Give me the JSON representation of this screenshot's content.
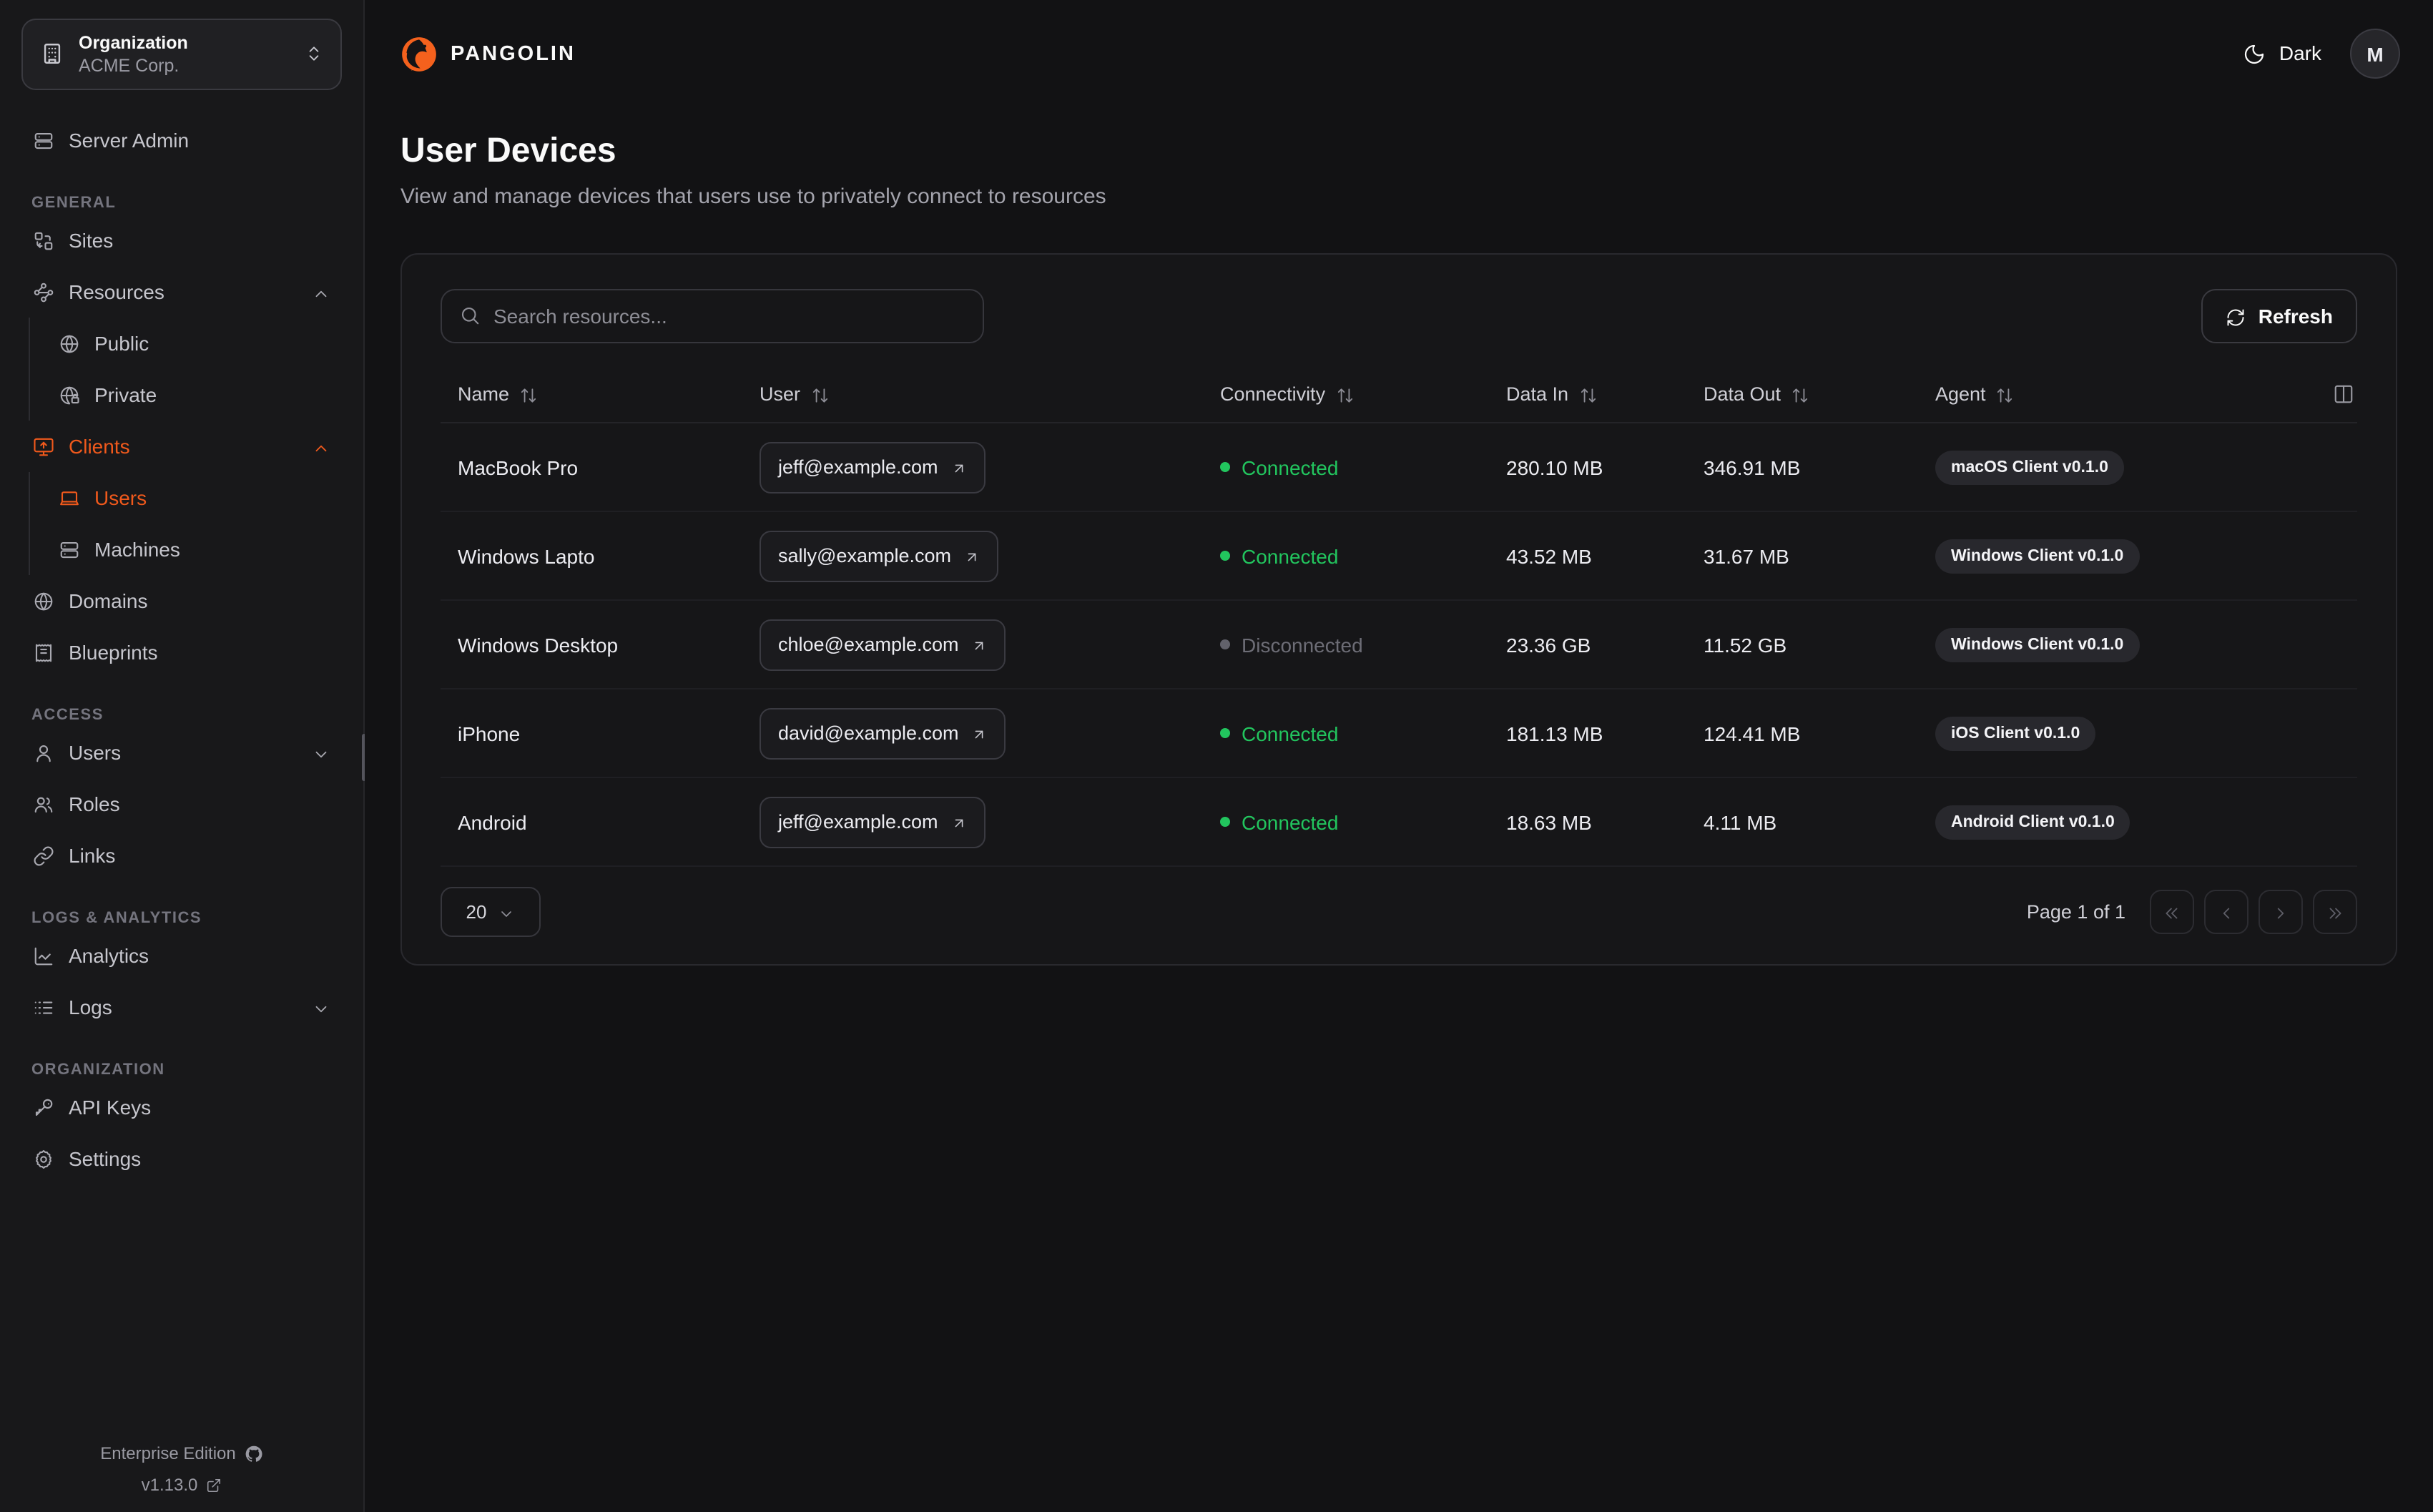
{
  "brand": {
    "name": "PANGOLIN"
  },
  "org_selector": {
    "label": "Organization",
    "value": "ACME Corp.",
    "icon": "building"
  },
  "topbar": {
    "theme_label": "Dark",
    "theme_icon": "moon",
    "avatar_initial": "M"
  },
  "sidebar": {
    "top_item": {
      "label": "Server Admin",
      "icon": "server"
    },
    "sections": [
      {
        "label": "GENERAL",
        "items": [
          {
            "label": "Sites",
            "icon": "sites"
          },
          {
            "label": "Resources",
            "icon": "waypoints",
            "chevron": "up",
            "children": [
              {
                "label": "Public",
                "icon": "globe"
              },
              {
                "label": "Private",
                "icon": "globe-lock"
              }
            ]
          },
          {
            "label": "Clients",
            "icon": "monitor-up",
            "chevron": "up",
            "active": true,
            "children": [
              {
                "label": "Users",
                "icon": "laptop",
                "active": true
              },
              {
                "label": "Machines",
                "icon": "server"
              }
            ]
          },
          {
            "label": "Domains",
            "icon": "globe"
          },
          {
            "label": "Blueprints",
            "icon": "receipt"
          }
        ]
      },
      {
        "label": "ACCESS",
        "items": [
          {
            "label": "Users",
            "icon": "user",
            "chevron": "down"
          },
          {
            "label": "Roles",
            "icon": "users"
          },
          {
            "label": "Links",
            "icon": "link"
          }
        ]
      },
      {
        "label": "LOGS & ANALYTICS",
        "items": [
          {
            "label": "Analytics",
            "icon": "chart-line"
          },
          {
            "label": "Logs",
            "icon": "logs",
            "chevron": "down"
          }
        ]
      },
      {
        "label": "ORGANIZATION",
        "items": [
          {
            "label": "API Keys",
            "icon": "key"
          },
          {
            "label": "Settings",
            "icon": "gear"
          }
        ]
      }
    ],
    "footer": {
      "edition": "Enterprise Edition",
      "version": "v1.13.0"
    }
  },
  "page": {
    "title": "User Devices",
    "subtitle": "View and manage devices that users use to privately connect to resources"
  },
  "toolbar": {
    "search_placeholder": "Search resources...",
    "refresh_label": "Refresh"
  },
  "table": {
    "columns": [
      "Name",
      "User",
      "Connectivity",
      "Data In",
      "Data Out",
      "Agent"
    ],
    "rows": [
      {
        "name": "MacBook Pro",
        "user": "jeff@example.com",
        "status": "Connected",
        "connected": true,
        "data_in": "280.10 MB",
        "data_out": "346.91 MB",
        "agent": "macOS Client v0.1.0"
      },
      {
        "name": "Windows Lapto",
        "user": "sally@example.com",
        "status": "Connected",
        "connected": true,
        "data_in": "43.52 MB",
        "data_out": "31.67 MB",
        "agent": "Windows Client v0.1.0"
      },
      {
        "name": "Windows Desktop",
        "user": "chloe@example.com",
        "status": "Disconnected",
        "connected": false,
        "data_in": "23.36 GB",
        "data_out": "11.52 GB",
        "agent": "Windows Client v0.1.0"
      },
      {
        "name": "iPhone",
        "user": "david@example.com",
        "status": "Connected",
        "connected": true,
        "data_in": "181.13 MB",
        "data_out": "124.41 MB",
        "agent": "iOS Client v0.1.0"
      },
      {
        "name": "Android",
        "user": "jeff@example.com",
        "status": "Connected",
        "connected": true,
        "data_in": "18.63 MB",
        "data_out": "4.11 MB",
        "agent": "Android Client v0.1.0"
      }
    ]
  },
  "pagination": {
    "page_size": "20",
    "page_label": "Page 1 of 1"
  },
  "colors": {
    "accent": "#f0591c",
    "green": "#22c55e",
    "sidebar_bg": "#18181a",
    "main_bg": "#121214"
  }
}
